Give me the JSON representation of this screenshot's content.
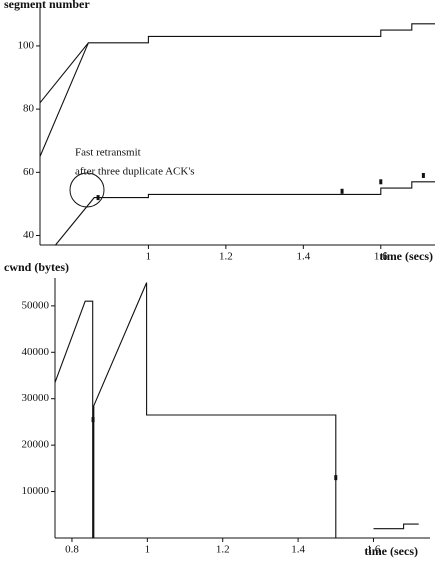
{
  "chart_data": [
    {
      "type": "line",
      "y_label": "segment number",
      "x_label": "time (secs)",
      "xlim": [
        0.72,
        1.74
      ],
      "ylim": [
        37,
        112
      ],
      "xticks": [
        1,
        1.2,
        1.4,
        1.6
      ],
      "yticks": [
        40,
        60,
        80,
        100
      ],
      "annotations": [
        "Fast retransmit",
        "after three duplicate ACK's"
      ],
      "series": [
        {
          "color": "#111",
          "x": [
            0.72,
            0.845,
            1.0,
            1.0,
            1.6,
            1.6,
            1.68,
            1.68,
            1.74
          ],
          "values": [
            82,
            101,
            101,
            103,
            103,
            105,
            105,
            107,
            107
          ]
        },
        {
          "color": "#111",
          "x": [
            0.72,
            0.845
          ],
          "values": [
            65,
            101
          ]
        },
        {
          "color": "#111",
          "x": [
            0.76,
            0.86,
            1.0,
            1.0,
            1.6,
            1.6,
            1.68,
            1.68,
            1.74
          ],
          "values": [
            37,
            52,
            52,
            53,
            53,
            55,
            55,
            57,
            57
          ]
        }
      ],
      "points": {
        "color": "#111",
        "x": [
          0.87,
          1.5,
          1.6,
          1.71
        ],
        "values": [
          52,
          54,
          57,
          59
        ]
      }
    },
    {
      "type": "line",
      "y_label": "cwnd (bytes)",
      "x_label": "time (secs)",
      "xlim": [
        0.755,
        1.75
      ],
      "ylim": [
        0,
        56000
      ],
      "xticks": [
        0.8,
        1,
        1.2,
        1.4,
        1.6
      ],
      "yticks": [
        10000,
        20000,
        30000,
        40000,
        50000
      ],
      "series": [
        {
          "color": "#111",
          "x": [
            0.755,
            0.835,
            0.855,
            0.855,
            0.858,
            0.858,
            0.998,
            0.998,
            1.5,
            1.5,
            null,
            1.6,
            1.68,
            1.68,
            1.72
          ],
          "values": [
            33500,
            51000,
            51000,
            0,
            0,
            28500,
            55000,
            26500,
            26500,
            0,
            null,
            2000,
            2000,
            3000,
            3000
          ]
        }
      ],
      "points": {
        "color": "#111",
        "x": [
          0.856,
          1.5
        ],
        "values": [
          25500,
          13000
        ]
      }
    }
  ]
}
